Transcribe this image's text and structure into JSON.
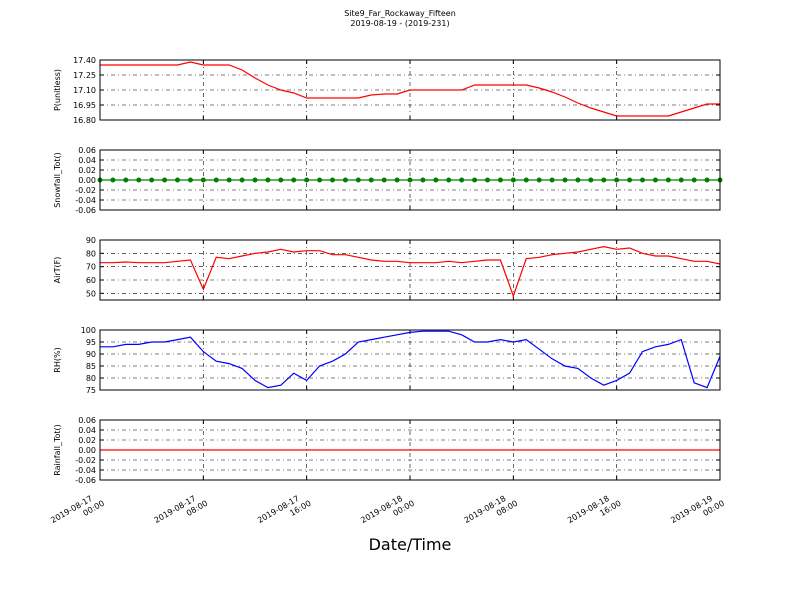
{
  "title": "Site9_Far_Rockaway_Fifteen",
  "subtitle": "2019-08-19 - (2019-231)",
  "xlabel": "Date/Time",
  "chart_data": [
    {
      "type": "line",
      "ylabel": "P(unitless)",
      "color": "#ff0000",
      "grid": true,
      "xlim": [
        "2019-08-17 00:00",
        "2019-08-19 00:00"
      ],
      "xticks": [
        "2019-08-17 00:00",
        "2019-08-17 08:00",
        "2019-08-17 16:00",
        "2019-08-18 00:00",
        "2019-08-18 08:00",
        "2019-08-18 16:00",
        "2019-08-19 00:00"
      ],
      "ylim": [
        16.8,
        17.4
      ],
      "yticks": [
        {
          "value": 16.8,
          "label": "16.80"
        },
        16.95,
        {
          "value": 17.1,
          "label": "17.10"
        },
        17.25,
        {
          "value": 17.4,
          "label": "17.40"
        }
      ],
      "x": [
        "2019-08-17 00:00",
        "2019-08-17 01:00",
        "2019-08-17 02:00",
        "2019-08-17 03:00",
        "2019-08-17 04:00",
        "2019-08-17 05:00",
        "2019-08-17 06:00",
        "2019-08-17 07:00",
        "2019-08-17 08:00",
        "2019-08-17 09:00",
        "2019-08-17 10:00",
        "2019-08-17 11:00",
        "2019-08-17 12:00",
        "2019-08-17 13:00",
        "2019-08-17 14:00",
        "2019-08-17 15:00",
        "2019-08-17 16:00",
        "2019-08-17 17:00",
        "2019-08-17 18:00",
        "2019-08-17 19:00",
        "2019-08-17 20:00",
        "2019-08-17 21:00",
        "2019-08-17 22:00",
        "2019-08-17 23:00",
        "2019-08-18 00:00",
        "2019-08-18 01:00",
        "2019-08-18 02:00",
        "2019-08-18 03:00",
        "2019-08-18 04:00",
        "2019-08-18 05:00",
        "2019-08-18 06:00",
        "2019-08-18 07:00",
        "2019-08-18 08:00",
        "2019-08-18 09:00",
        "2019-08-18 10:00",
        "2019-08-18 11:00",
        "2019-08-18 12:00",
        "2019-08-18 13:00",
        "2019-08-18 14:00",
        "2019-08-18 15:00",
        "2019-08-18 16:00",
        "2019-08-18 17:00",
        "2019-08-18 18:00",
        "2019-08-18 19:00",
        "2019-08-18 20:00",
        "2019-08-18 21:00",
        "2019-08-18 22:00",
        "2019-08-18 23:00",
        "2019-08-19 00:00"
      ],
      "values": [
        17.35,
        17.35,
        17.35,
        17.35,
        17.35,
        17.35,
        17.35,
        17.38,
        17.35,
        17.35,
        17.35,
        17.3,
        17.22,
        17.15,
        17.1,
        17.07,
        17.02,
        17.02,
        17.02,
        17.02,
        17.02,
        17.05,
        17.06,
        17.06,
        17.1,
        17.1,
        17.1,
        17.1,
        17.1,
        17.15,
        17.15,
        17.15,
        17.15,
        17.15,
        17.12,
        17.08,
        17.03,
        16.97,
        16.92,
        16.88,
        16.84,
        16.84,
        16.84,
        16.84,
        16.84,
        16.88,
        16.92,
        16.96,
        16.96
      ]
    },
    {
      "type": "line",
      "ylabel": "Snowfall_Tot()",
      "color": "#008000",
      "markers": true,
      "grid": true,
      "xlim": [
        "2019-08-17 00:00",
        "2019-08-19 00:00"
      ],
      "xticks": [
        "2019-08-17 00:00",
        "2019-08-17 08:00",
        "2019-08-17 16:00",
        "2019-08-18 00:00",
        "2019-08-18 08:00",
        "2019-08-18 16:00",
        "2019-08-19 00:00"
      ],
      "ylim": [
        -0.06,
        0.06
      ],
      "yticks": [
        -0.06,
        -0.04,
        -0.02,
        {
          "value": 0,
          "label": "0.00"
        },
        0.02,
        0.04,
        0.06
      ],
      "x": [
        "2019-08-17 00:00",
        "2019-08-17 01:00",
        "2019-08-17 02:00",
        "2019-08-17 03:00",
        "2019-08-17 04:00",
        "2019-08-17 05:00",
        "2019-08-17 06:00",
        "2019-08-17 07:00",
        "2019-08-17 08:00",
        "2019-08-17 09:00",
        "2019-08-17 10:00",
        "2019-08-17 11:00",
        "2019-08-17 12:00",
        "2019-08-17 13:00",
        "2019-08-17 14:00",
        "2019-08-17 15:00",
        "2019-08-17 16:00",
        "2019-08-17 17:00",
        "2019-08-17 18:00",
        "2019-08-17 19:00",
        "2019-08-17 20:00",
        "2019-08-17 21:00",
        "2019-08-17 22:00",
        "2019-08-17 23:00",
        "2019-08-18 00:00",
        "2019-08-18 01:00",
        "2019-08-18 02:00",
        "2019-08-18 03:00",
        "2019-08-18 04:00",
        "2019-08-18 05:00",
        "2019-08-18 06:00",
        "2019-08-18 07:00",
        "2019-08-18 08:00",
        "2019-08-18 09:00",
        "2019-08-18 10:00",
        "2019-08-18 11:00",
        "2019-08-18 12:00",
        "2019-08-18 13:00",
        "2019-08-18 14:00",
        "2019-08-18 15:00",
        "2019-08-18 16:00",
        "2019-08-18 17:00",
        "2019-08-18 18:00",
        "2019-08-18 19:00",
        "2019-08-18 20:00",
        "2019-08-18 21:00",
        "2019-08-18 22:00",
        "2019-08-18 23:00",
        "2019-08-19 00:00"
      ],
      "values": [
        0,
        0,
        0,
        0,
        0,
        0,
        0,
        0,
        0,
        0,
        0,
        0,
        0,
        0,
        0,
        0,
        0,
        0,
        0,
        0,
        0,
        0,
        0,
        0,
        0,
        0,
        0,
        0,
        0,
        0,
        0,
        0,
        0,
        0,
        0,
        0,
        0,
        0,
        0,
        0,
        0,
        0,
        0,
        0,
        0,
        0,
        0,
        0,
        0
      ]
    },
    {
      "type": "line",
      "ylabel": "AirT(F)",
      "color": "#ff0000",
      "grid": true,
      "xlim": [
        "2019-08-17 00:00",
        "2019-08-19 00:00"
      ],
      "xticks": [
        "2019-08-17 00:00",
        "2019-08-17 08:00",
        "2019-08-17 16:00",
        "2019-08-18 00:00",
        "2019-08-18 08:00",
        "2019-08-18 16:00",
        "2019-08-19 00:00"
      ],
      "ylim": [
        45,
        90
      ],
      "yticks": [
        50,
        60,
        70,
        80,
        90
      ],
      "x": [
        "2019-08-17 00:00",
        "2019-08-17 01:00",
        "2019-08-17 02:00",
        "2019-08-17 03:00",
        "2019-08-17 04:00",
        "2019-08-17 05:00",
        "2019-08-17 06:00",
        "2019-08-17 07:00",
        "2019-08-17 08:00",
        "2019-08-17 09:00",
        "2019-08-17 10:00",
        "2019-08-17 11:00",
        "2019-08-17 12:00",
        "2019-08-17 13:00",
        "2019-08-17 14:00",
        "2019-08-17 15:00",
        "2019-08-17 16:00",
        "2019-08-17 17:00",
        "2019-08-17 18:00",
        "2019-08-17 19:00",
        "2019-08-17 20:00",
        "2019-08-17 21:00",
        "2019-08-17 22:00",
        "2019-08-17 23:00",
        "2019-08-18 00:00",
        "2019-08-18 01:00",
        "2019-08-18 02:00",
        "2019-08-18 03:00",
        "2019-08-18 04:00",
        "2019-08-18 05:00",
        "2019-08-18 06:00",
        "2019-08-18 07:00",
        "2019-08-18 08:00",
        "2019-08-18 09:00",
        "2019-08-18 10:00",
        "2019-08-18 11:00",
        "2019-08-18 12:00",
        "2019-08-18 13:00",
        "2019-08-18 14:00",
        "2019-08-18 15:00",
        "2019-08-18 16:00",
        "2019-08-18 17:00",
        "2019-08-18 18:00",
        "2019-08-18 19:00",
        "2019-08-18 20:00",
        "2019-08-18 21:00",
        "2019-08-18 22:00",
        "2019-08-18 23:00",
        "2019-08-19 00:00"
      ],
      "values": [
        73,
        73,
        73.5,
        73,
        73,
        73,
        74,
        75,
        53,
        77,
        76,
        78,
        80,
        81,
        83,
        81,
        82,
        82,
        79,
        79,
        77,
        75,
        74,
        74,
        73,
        73,
        73,
        74,
        73,
        74,
        75,
        75,
        48,
        76,
        77,
        79,
        80,
        81,
        83,
        85,
        83,
        84,
        80,
        78,
        78,
        76,
        74,
        74,
        72
      ]
    },
    {
      "type": "line",
      "ylabel": "RH(%)",
      "color": "#0000ff",
      "grid": true,
      "xlim": [
        "2019-08-17 00:00",
        "2019-08-19 00:00"
      ],
      "xticks": [
        "2019-08-17 00:00",
        "2019-08-17 08:00",
        "2019-08-17 16:00",
        "2019-08-18 00:00",
        "2019-08-18 08:00",
        "2019-08-18 16:00",
        "2019-08-19 00:00"
      ],
      "ylim": [
        75,
        100
      ],
      "yticks": [
        75,
        80,
        85,
        90,
        95,
        100
      ],
      "x": [
        "2019-08-17 00:00",
        "2019-08-17 01:00",
        "2019-08-17 02:00",
        "2019-08-17 03:00",
        "2019-08-17 04:00",
        "2019-08-17 05:00",
        "2019-08-17 06:00",
        "2019-08-17 07:00",
        "2019-08-17 08:00",
        "2019-08-17 09:00",
        "2019-08-17 10:00",
        "2019-08-17 11:00",
        "2019-08-17 12:00",
        "2019-08-17 13:00",
        "2019-08-17 14:00",
        "2019-08-17 15:00",
        "2019-08-17 16:00",
        "2019-08-17 17:00",
        "2019-08-17 18:00",
        "2019-08-17 19:00",
        "2019-08-17 20:00",
        "2019-08-17 21:00",
        "2019-08-17 22:00",
        "2019-08-17 23:00",
        "2019-08-18 00:00",
        "2019-08-18 01:00",
        "2019-08-18 02:00",
        "2019-08-18 03:00",
        "2019-08-18 04:00",
        "2019-08-18 05:00",
        "2019-08-18 06:00",
        "2019-08-18 07:00",
        "2019-08-18 08:00",
        "2019-08-18 09:00",
        "2019-08-18 10:00",
        "2019-08-18 11:00",
        "2019-08-18 12:00",
        "2019-08-18 13:00",
        "2019-08-18 14:00",
        "2019-08-18 15:00",
        "2019-08-18 16:00",
        "2019-08-18 17:00",
        "2019-08-18 18:00",
        "2019-08-18 19:00",
        "2019-08-18 20:00",
        "2019-08-18 21:00",
        "2019-08-18 22:00",
        "2019-08-18 23:00",
        "2019-08-19 00:00"
      ],
      "values": [
        93,
        93,
        94,
        94,
        95,
        95,
        96,
        97,
        91,
        87,
        86,
        84,
        79,
        76,
        77,
        82,
        79,
        85,
        87,
        90,
        95,
        96,
        97,
        98,
        99,
        99.5,
        99.5,
        99.5,
        98,
        95,
        95,
        96,
        95,
        96,
        92,
        88,
        85,
        84,
        80,
        77,
        79,
        82,
        91,
        93,
        94,
        96,
        78,
        76,
        89
      ]
    },
    {
      "type": "line",
      "ylabel": "Rainfall_Tot()",
      "color": "#ff0000",
      "grid": true,
      "xlim": [
        "2019-08-17 00:00",
        "2019-08-19 00:00"
      ],
      "xticks": [
        "2019-08-17 00:00",
        "2019-08-17 08:00",
        "2019-08-17 16:00",
        "2019-08-18 00:00",
        "2019-08-18 08:00",
        "2019-08-18 16:00",
        "2019-08-19 00:00"
      ],
      "ylim": [
        -0.06,
        0.06
      ],
      "yticks": [
        -0.06,
        -0.04,
        -0.02,
        {
          "value": 0,
          "label": "0.00"
        },
        0.02,
        0.04,
        0.06
      ],
      "x": [
        "2019-08-17 00:00",
        "2019-08-17 01:00",
        "2019-08-17 02:00",
        "2019-08-17 03:00",
        "2019-08-17 04:00",
        "2019-08-17 05:00",
        "2019-08-17 06:00",
        "2019-08-17 07:00",
        "2019-08-17 08:00",
        "2019-08-17 09:00",
        "2019-08-17 10:00",
        "2019-08-17 11:00",
        "2019-08-17 12:00",
        "2019-08-17 13:00",
        "2019-08-17 14:00",
        "2019-08-17 15:00",
        "2019-08-17 16:00",
        "2019-08-17 17:00",
        "2019-08-17 18:00",
        "2019-08-17 19:00",
        "2019-08-17 20:00",
        "2019-08-17 21:00",
        "2019-08-17 22:00",
        "2019-08-17 23:00",
        "2019-08-18 00:00",
        "2019-08-18 01:00",
        "2019-08-18 02:00",
        "2019-08-18 03:00",
        "2019-08-18 04:00",
        "2019-08-18 05:00",
        "2019-08-18 06:00",
        "2019-08-18 07:00",
        "2019-08-18 08:00",
        "2019-08-18 09:00",
        "2019-08-18 10:00",
        "2019-08-18 11:00",
        "2019-08-18 12:00",
        "2019-08-18 13:00",
        "2019-08-18 14:00",
        "2019-08-18 15:00",
        "2019-08-18 16:00",
        "2019-08-18 17:00",
        "2019-08-18 18:00",
        "2019-08-18 19:00",
        "2019-08-18 20:00",
        "2019-08-18 21:00",
        "2019-08-18 22:00",
        "2019-08-18 23:00",
        "2019-08-19 00:00"
      ],
      "values": [
        0,
        0,
        0,
        0,
        0,
        0,
        0,
        0,
        0,
        0,
        0,
        0,
        0,
        0,
        0,
        0,
        0,
        0,
        0,
        0,
        0,
        0,
        0,
        0,
        0,
        0,
        0,
        0,
        0,
        0,
        0,
        0,
        0,
        0,
        0,
        0,
        0,
        0,
        0,
        0,
        0,
        0,
        0,
        0,
        0,
        0,
        0,
        0,
        0
      ]
    }
  ]
}
